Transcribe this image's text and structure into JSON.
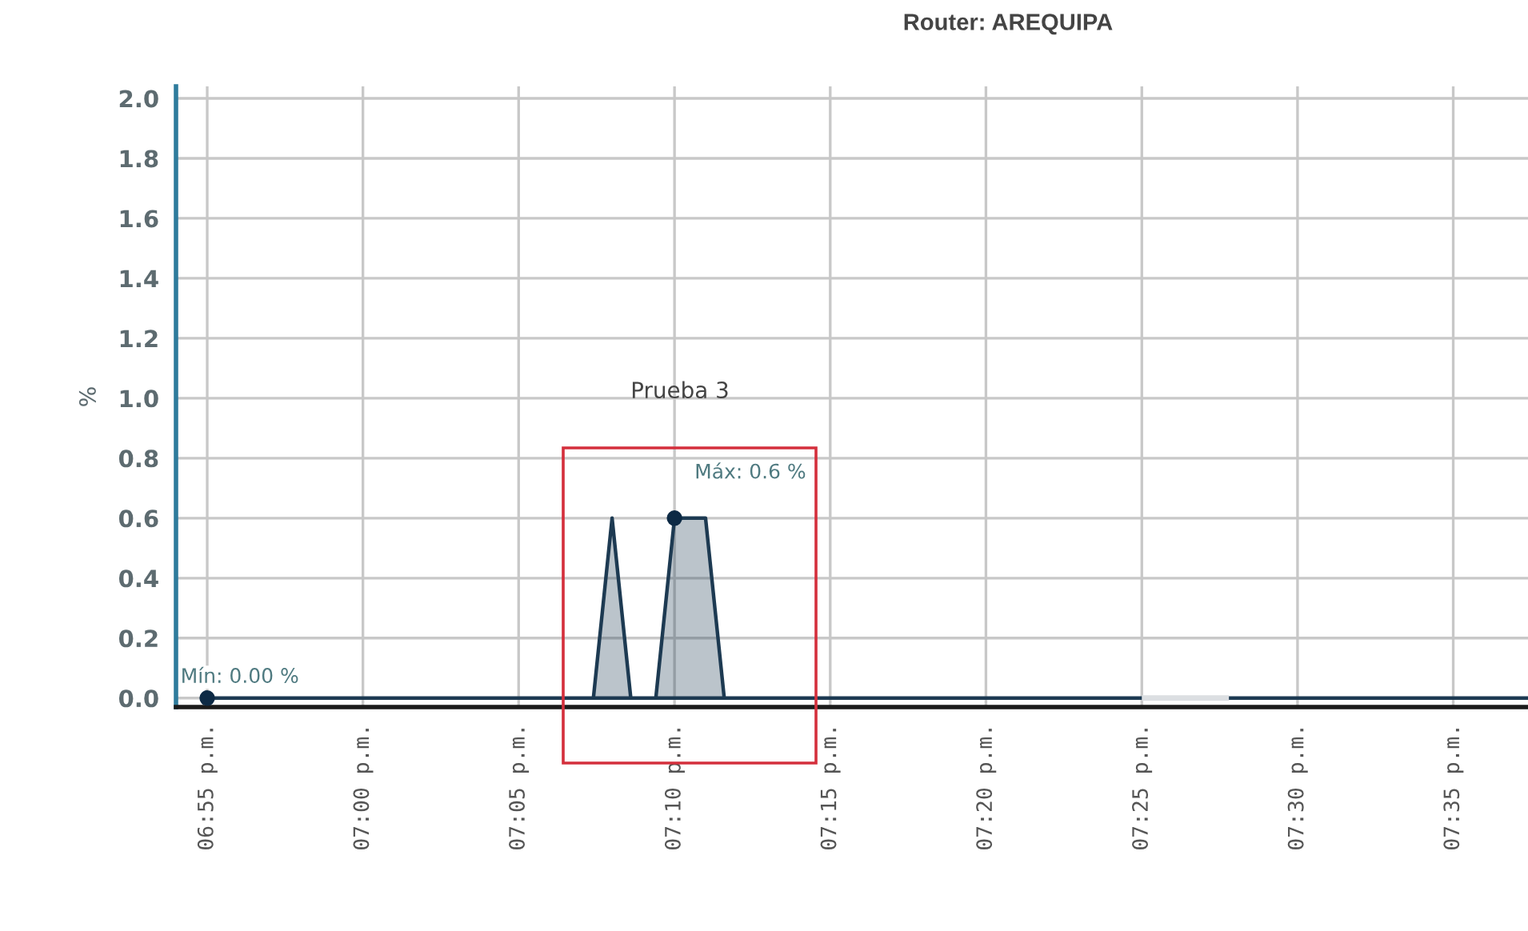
{
  "chart_data": {
    "type": "area",
    "title": "Router: AREQUIPA",
    "ylabel": "%",
    "x": [
      18.9167,
      19.1233,
      19.1333,
      19.1433,
      19.1567,
      19.1667,
      19.1833,
      19.1933,
      19.4167,
      19.44,
      19.4633,
      19.6233
    ],
    "series": [
      {
        "color": "#1d3a52",
        "values": [
          0,
          0,
          0.6,
          0,
          0,
          0.6,
          0.6,
          0,
          0,
          null,
          0,
          0
        ]
      }
    ],
    "xlim": [
      18.9,
      19.6233
    ],
    "ylim": [
      -0.03,
      2.04
    ],
    "xticks": [
      {
        "value": 18.9167,
        "label": "06:55 p.m."
      },
      {
        "value": 19.0,
        "label": "07:00 p.m."
      },
      {
        "value": 19.0833,
        "label": "07:05 p.m."
      },
      {
        "value": 19.1667,
        "label": "07:10 p.m."
      },
      {
        "value": 19.25,
        "label": "07:15 p.m."
      },
      {
        "value": 19.3333,
        "label": "07:20 p.m."
      },
      {
        "value": 19.4167,
        "label": "07:25 p.m."
      },
      {
        "value": 19.5,
        "label": "07:30 p.m."
      },
      {
        "value": 19.5833,
        "label": "07:35 p.m."
      }
    ],
    "yticks": [
      {
        "value": 0,
        "label": "0.0"
      },
      0.2,
      0.4,
      0.6,
      0.8,
      {
        "value": 1,
        "label": "1.0"
      },
      1.2,
      1.4,
      1.6,
      1.8,
      {
        "value": 2,
        "label": "2.0"
      }
    ],
    "grid": true,
    "annotations": [
      "Prueba 3",
      {
        "text": "Máx: 0.6 %",
        "x": 19.1667,
        "y": 0.6
      },
      {
        "text": "Mín: 0.00 %",
        "x": 18.9167,
        "y": 0
      }
    ]
  }
}
